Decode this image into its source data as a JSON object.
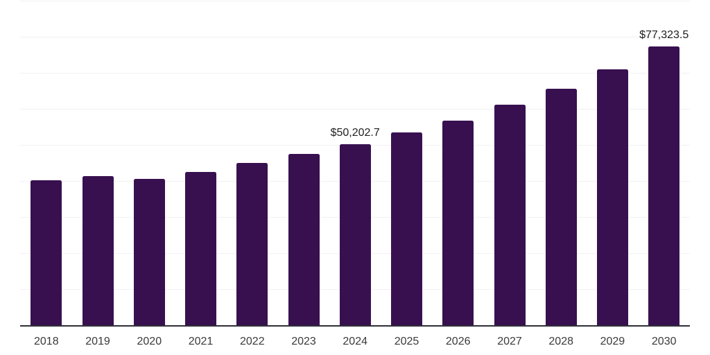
{
  "chart_data": {
    "type": "bar",
    "title": "",
    "xlabel": "",
    "ylabel": "",
    "categories": [
      "2018",
      "2019",
      "2020",
      "2021",
      "2022",
      "2023",
      "2024",
      "2025",
      "2026",
      "2027",
      "2028",
      "2029",
      "2030"
    ],
    "values": [
      40250,
      41500,
      40650,
      42600,
      45100,
      47550,
      50202.7,
      53450,
      56850,
      61200,
      65600,
      71000,
      77323.5
    ],
    "annotations": [
      {
        "category": "2024",
        "label": "$50,202.7"
      },
      {
        "category": "2030",
        "label": "$77,323.5"
      }
    ],
    "ylim": [
      0,
      90000
    ],
    "gridline_step": 10000,
    "grid": true,
    "legend_position": "none",
    "y_tick_labels_visible": false
  },
  "colors": {
    "bar": "#38104F",
    "axis_line": "#2F2F38",
    "gridline": "#F3F1F3",
    "tick_label": "#3A3A3A",
    "value_label": "#1F1F1F",
    "background": "#FFFFFF"
  }
}
